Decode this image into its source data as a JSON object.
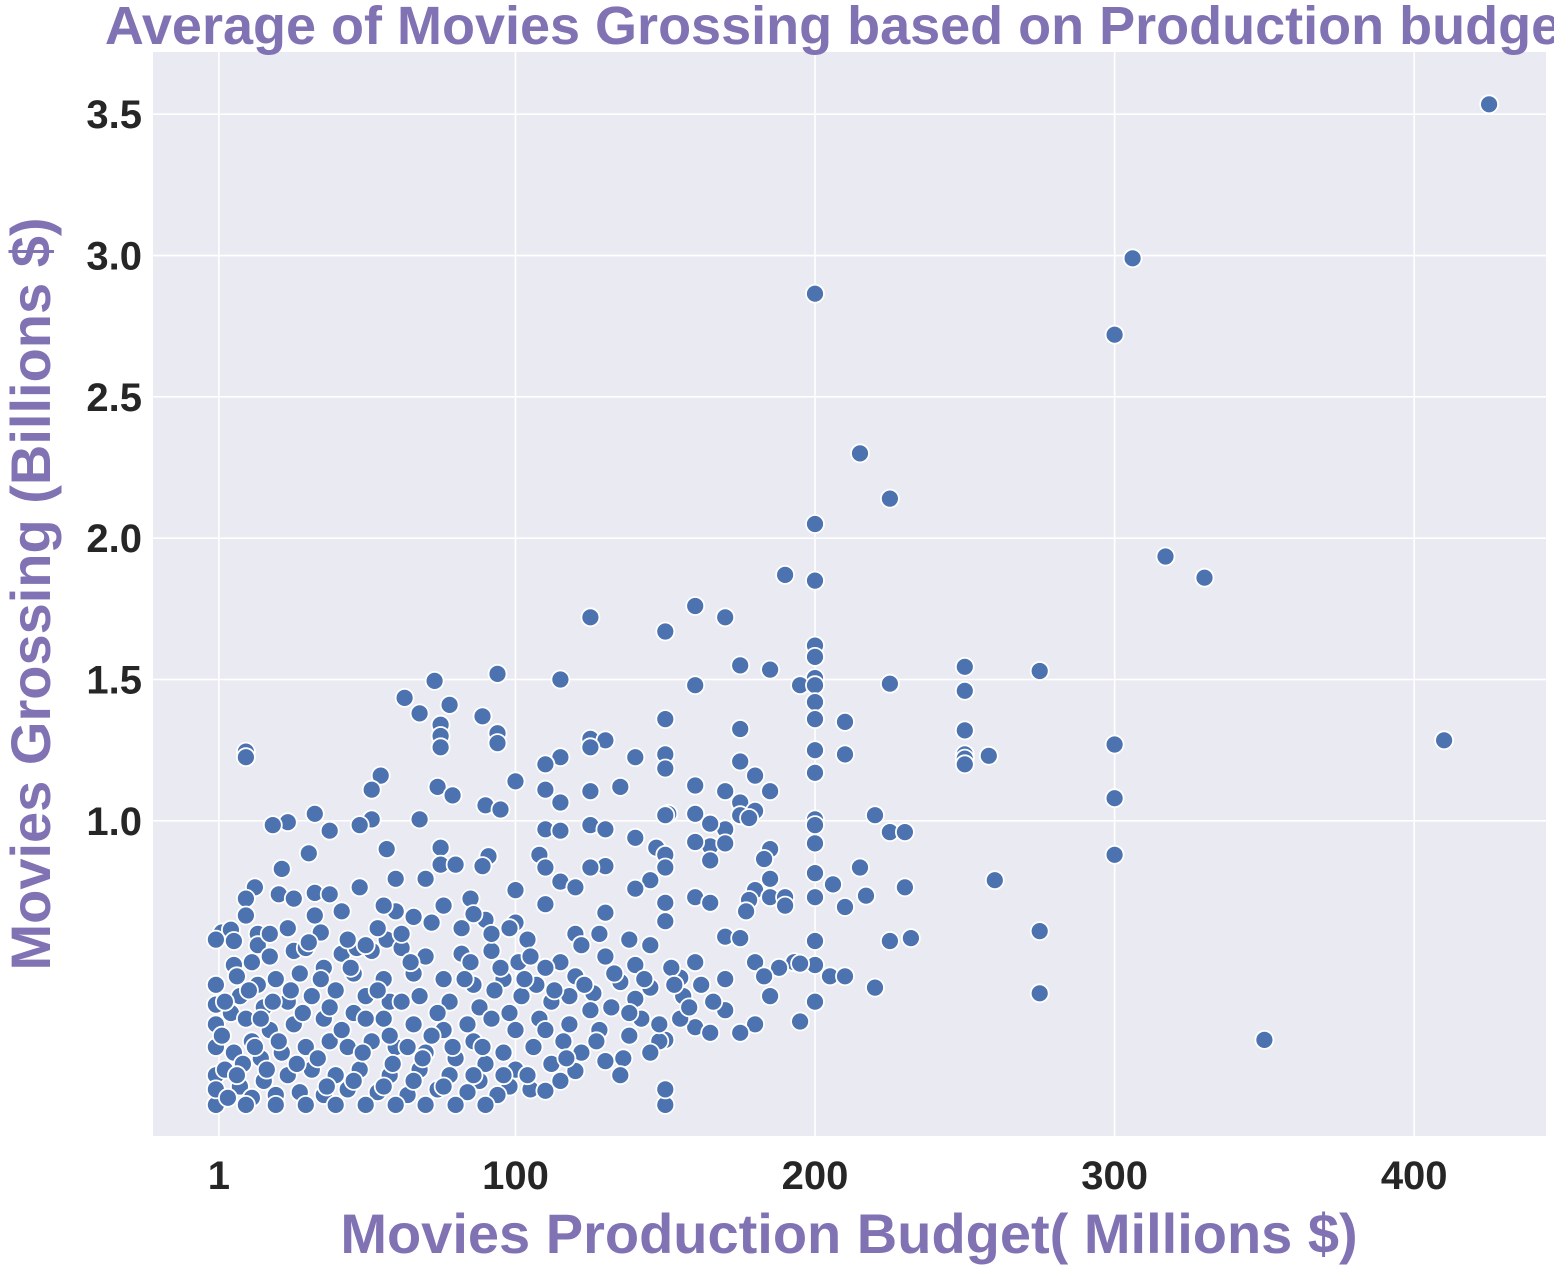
{
  "chart_data": {
    "type": "scatter",
    "title": "Average  of Movies Grossing based on Production budget",
    "xlabel": "Movies Production Budget( Millions $)",
    "ylabel": "Movies Grossing (Billions $)",
    "xlim": [
      -21,
      444
    ],
    "ylim": [
      -0.115,
      3.72
    ],
    "x_ticks": [
      1,
      100,
      200,
      300,
      400
    ],
    "y_ticks": [
      1.0,
      1.5,
      2.0,
      2.5,
      3.0,
      3.5
    ],
    "y_tick_labels": [
      "1.0",
      "1.5",
      "2.0",
      "2.5",
      "3.0",
      "3.5"
    ],
    "grid": true,
    "colors": {
      "background": "#eaeaf2",
      "grid": "#ffffff",
      "marker": "#4c72b0",
      "marker_edge": "#ffffff",
      "label": "#8172b3",
      "tick": "#262626"
    },
    "points": [
      [
        425,
        3.535
      ],
      [
        306,
        2.99
      ],
      [
        200,
        2.865
      ],
      [
        300,
        2.72
      ],
      [
        215,
        2.3
      ],
      [
        225,
        2.14
      ],
      [
        200,
        2.05
      ],
      [
        317,
        1.935
      ],
      [
        330,
        1.86
      ],
      [
        190,
        1.87
      ],
      [
        200,
        1.85
      ],
      [
        125,
        1.72
      ],
      [
        160,
        1.76
      ],
      [
        170,
        1.72
      ],
      [
        150,
        1.67
      ],
      [
        200,
        1.62
      ],
      [
        200,
        1.58
      ],
      [
        175,
        1.55
      ],
      [
        185,
        1.535
      ],
      [
        250,
        1.545
      ],
      [
        275,
        1.53
      ],
      [
        94,
        1.52
      ],
      [
        115,
        1.5
      ],
      [
        200,
        1.505
      ],
      [
        73,
        1.495
      ],
      [
        160,
        1.48
      ],
      [
        195,
        1.48
      ],
      [
        200,
        1.48
      ],
      [
        225,
        1.485
      ],
      [
        250,
        1.46
      ],
      [
        63,
        1.435
      ],
      [
        200,
        1.42
      ],
      [
        78,
        1.41
      ],
      [
        68,
        1.38
      ],
      [
        89,
        1.37
      ],
      [
        150,
        1.36
      ],
      [
        200,
        1.36
      ],
      [
        210,
        1.35
      ],
      [
        75,
        1.34
      ],
      [
        175,
        1.325
      ],
      [
        250,
        1.32
      ],
      [
        94,
        1.31
      ],
      [
        75,
        1.3
      ],
      [
        125,
        1.29
      ],
      [
        130,
        1.285
      ],
      [
        410,
        1.285
      ],
      [
        94,
        1.275
      ],
      [
        300,
        1.27
      ],
      [
        125,
        1.26
      ],
      [
        75,
        1.26
      ],
      [
        200,
        1.25
      ],
      [
        10,
        1.245
      ],
      [
        150,
        1.235
      ],
      [
        210,
        1.235
      ],
      [
        250,
        1.235
      ],
      [
        258,
        1.23
      ],
      [
        10,
        1.225
      ],
      [
        115,
        1.225
      ],
      [
        140,
        1.225
      ],
      [
        250,
        1.22
      ],
      [
        175,
        1.21
      ],
      [
        110,
        1.2
      ],
      [
        250,
        1.2
      ],
      [
        150,
        1.185
      ],
      [
        200,
        1.17
      ],
      [
        180,
        1.16
      ],
      [
        55,
        1.16
      ],
      [
        100,
        1.14
      ],
      [
        74,
        1.12
      ],
      [
        135,
        1.12
      ],
      [
        160,
        1.125
      ],
      [
        110,
        1.11
      ],
      [
        125,
        1.105
      ],
      [
        170,
        1.105
      ],
      [
        185,
        1.105
      ],
      [
        52,
        1.11
      ],
      [
        79,
        1.09
      ],
      [
        300,
        1.08
      ],
      [
        175,
        1.065
      ],
      [
        115,
        1.065
      ],
      [
        90,
        1.055
      ],
      [
        95,
        1.04
      ],
      [
        180,
        1.035
      ],
      [
        175,
        1.02
      ],
      [
        151,
        1.025
      ],
      [
        150,
        1.02
      ],
      [
        160,
        1.025
      ],
      [
        220,
        1.02
      ],
      [
        33,
        1.025
      ],
      [
        52,
        1.005
      ],
      [
        68,
        1.005
      ],
      [
        200,
        1.005
      ],
      [
        178,
        1.01
      ],
      [
        24,
        0.995
      ],
      [
        19,
        0.985
      ],
      [
        48,
        0.985
      ],
      [
        110,
        0.97
      ],
      [
        125,
        0.985
      ],
      [
        170,
        0.97
      ],
      [
        200,
        0.985
      ],
      [
        38,
        0.965
      ],
      [
        115,
        0.965
      ],
      [
        165,
        0.99
      ],
      [
        225,
        0.96
      ],
      [
        230,
        0.96
      ],
      [
        140,
        0.94
      ],
      [
        200,
        0.92
      ],
      [
        147,
        0.905
      ],
      [
        130,
        0.97
      ],
      [
        75,
        0.905
      ],
      [
        57,
        0.9
      ],
      [
        165,
        0.91
      ],
      [
        170,
        0.92
      ],
      [
        185,
        0.9
      ],
      [
        160,
        0.925
      ],
      [
        31,
        0.885
      ],
      [
        91,
        0.875
      ],
      [
        108,
        0.88
      ],
      [
        150,
        0.88
      ],
      [
        300,
        0.88
      ],
      [
        183,
        0.865
      ],
      [
        165,
        0.86
      ],
      [
        130,
        0.84
      ],
      [
        215,
        0.835
      ],
      [
        75,
        0.845
      ],
      [
        80,
        0.845
      ],
      [
        89,
        0.84
      ],
      [
        110,
        0.835
      ],
      [
        125,
        0.835
      ],
      [
        150,
        0.835
      ],
      [
        22,
        0.83
      ],
      [
        200,
        0.815
      ],
      [
        260,
        0.79
      ],
      [
        60,
        0.795
      ],
      [
        70,
        0.795
      ],
      [
        185,
        0.795
      ],
      [
        145,
        0.79
      ],
      [
        115,
        0.785
      ],
      [
        13,
        0.765
      ],
      [
        48,
        0.765
      ],
      [
        120,
        0.765
      ],
      [
        230,
        0.765
      ],
      [
        140,
        0.76
      ],
      [
        206,
        0.775
      ],
      [
        180,
        0.755
      ],
      [
        33,
        0.745
      ],
      [
        38,
        0.74
      ],
      [
        21,
        0.74
      ],
      [
        100,
        0.755
      ],
      [
        185,
        0.73
      ],
      [
        10,
        0.725
      ],
      [
        26,
        0.725
      ],
      [
        85,
        0.725
      ],
      [
        160,
        0.73
      ],
      [
        190,
        0.73
      ],
      [
        217,
        0.735
      ],
      [
        200,
        0.73
      ],
      [
        110,
        0.705
      ],
      [
        150,
        0.71
      ],
      [
        165,
        0.71
      ],
      [
        178,
        0.72
      ],
      [
        190,
        0.7
      ],
      [
        210,
        0.695
      ],
      [
        33,
        0.665
      ],
      [
        10,
        0.665
      ],
      [
        130,
        0.675
      ],
      [
        177,
        0.68
      ],
      [
        60,
        0.68
      ],
      [
        90,
        0.65
      ],
      [
        150,
        0.645
      ],
      [
        100,
        0.64
      ],
      [
        2,
        0.605
      ],
      [
        5,
        0.615
      ],
      [
        120,
        0.6
      ],
      [
        35,
        0.605
      ],
      [
        275,
        0.61
      ],
      [
        232,
        0.585
      ],
      [
        225,
        0.575
      ],
      [
        200,
        0.575
      ],
      [
        170,
        0.59
      ],
      [
        175,
        0.585
      ],
      [
        0,
        0.58
      ],
      [
        6,
        0.575
      ],
      [
        14,
        0.6
      ],
      [
        57,
        0.58
      ],
      [
        14,
        0.56
      ],
      [
        6,
        0.49
      ],
      [
        180,
        0.5
      ],
      [
        193,
        0.5
      ],
      [
        200,
        0.49
      ],
      [
        188,
        0.48
      ],
      [
        160,
        0.5
      ],
      [
        115,
        0.5
      ],
      [
        140,
        0.49
      ],
      [
        195,
        0.495
      ],
      [
        205,
        0.45
      ],
      [
        210,
        0.45
      ],
      [
        183,
        0.45
      ],
      [
        155,
        0.445
      ],
      [
        220,
        0.41
      ],
      [
        275,
        0.39
      ],
      [
        200,
        0.36
      ],
      [
        185,
        0.38
      ],
      [
        170,
        0.33
      ],
      [
        180,
        0.28
      ],
      [
        195,
        0.29
      ],
      [
        175,
        0.25
      ],
      [
        160,
        0.27
      ],
      [
        350,
        0.225
      ],
      [
        150,
        0.225
      ],
      [
        130,
        0.15
      ],
      [
        120,
        0.115
      ],
      [
        105,
        0.05
      ],
      [
        110,
        0.045
      ],
      [
        150,
        -0.005
      ],
      [
        150,
        0.05
      ],
      [
        0,
        -0.005
      ],
      [
        0,
        0.1
      ],
      [
        0,
        0.2
      ],
      [
        0,
        0.28
      ],
      [
        0,
        0.35
      ],
      [
        0,
        0.42
      ],
      [
        0,
        0.05
      ],
      [
        7,
        0.45
      ],
      [
        12,
        0.5
      ],
      [
        18,
        0.52
      ],
      [
        26,
        0.54
      ],
      [
        30,
        0.55
      ],
      [
        42,
        0.53
      ],
      [
        47,
        0.55
      ],
      [
        52,
        0.54
      ],
      [
        62,
        0.55
      ],
      [
        70,
        0.52
      ],
      [
        82,
        0.53
      ],
      [
        92,
        0.54
      ],
      [
        101,
        0.5
      ],
      [
        96,
        0.44
      ],
      [
        110,
        0.48
      ],
      [
        120,
        0.45
      ],
      [
        135,
        0.43
      ],
      [
        145,
        0.41
      ],
      [
        156,
        0.38
      ],
      [
        166,
        0.36
      ],
      [
        126,
        0.39
      ],
      [
        132,
        0.34
      ],
      [
        142,
        0.3
      ],
      [
        112,
        0.36
      ],
      [
        102,
        0.38
      ],
      [
        86,
        0.42
      ],
      [
        76,
        0.44
      ],
      [
        66,
        0.46
      ],
      [
        56,
        0.44
      ],
      [
        46,
        0.46
      ],
      [
        36,
        0.48
      ],
      [
        28,
        0.46
      ],
      [
        20,
        0.44
      ],
      [
        14,
        0.42
      ],
      [
        8,
        0.38
      ],
      [
        5,
        0.32
      ],
      [
        10,
        0.3
      ],
      [
        16,
        0.34
      ],
      [
        24,
        0.36
      ],
      [
        32,
        0.38
      ],
      [
        40,
        0.4
      ],
      [
        50,
        0.38
      ],
      [
        58,
        0.36
      ],
      [
        68,
        0.38
      ],
      [
        78,
        0.36
      ],
      [
        88,
        0.34
      ],
      [
        98,
        0.32
      ],
      [
        108,
        0.3
      ],
      [
        118,
        0.28
      ],
      [
        128,
        0.26
      ],
      [
        138,
        0.24
      ],
      [
        148,
        0.22
      ],
      [
        116,
        0.22
      ],
      [
        106,
        0.2
      ],
      [
        96,
        0.18
      ],
      [
        86,
        0.22
      ],
      [
        76,
        0.26
      ],
      [
        66,
        0.28
      ],
      [
        56,
        0.3
      ],
      [
        46,
        0.32
      ],
      [
        36,
        0.3
      ],
      [
        26,
        0.28
      ],
      [
        18,
        0.26
      ],
      [
        12,
        0.22
      ],
      [
        6,
        0.18
      ],
      [
        3,
        0.12
      ],
      [
        9,
        0.14
      ],
      [
        15,
        0.16
      ],
      [
        22,
        0.18
      ],
      [
        30,
        0.2
      ],
      [
        38,
        0.22
      ],
      [
        44,
        0.2
      ],
      [
        52,
        0.22
      ],
      [
        60,
        0.2
      ],
      [
        70,
        0.18
      ],
      [
        80,
        0.16
      ],
      [
        90,
        0.14
      ],
      [
        100,
        0.12
      ],
      [
        112,
        0.14
      ],
      [
        122,
        0.18
      ],
      [
        136,
        0.16
      ],
      [
        98,
        0.06
      ],
      [
        88,
        0.08
      ],
      [
        78,
        0.1
      ],
      [
        68,
        0.12
      ],
      [
        58,
        0.1
      ],
      [
        48,
        0.12
      ],
      [
        40,
        0.1
      ],
      [
        32,
        0.12
      ],
      [
        24,
        0.1
      ],
      [
        16,
        0.08
      ],
      [
        8,
        0.06
      ],
      [
        4,
        0.02
      ],
      [
        12,
        0.02
      ],
      [
        20,
        0.03
      ],
      [
        28,
        0.04
      ],
      [
        36,
        0.03
      ],
      [
        44,
        0.05
      ],
      [
        54,
        0.04
      ],
      [
        64,
        0.03
      ],
      [
        74,
        0.05
      ],
      [
        84,
        0.04
      ],
      [
        94,
        0.03
      ],
      [
        80,
        -0.005
      ],
      [
        70,
        -0.005
      ],
      [
        60,
        -0.005
      ],
      [
        50,
        -0.005
      ],
      [
        40,
        -0.005
      ],
      [
        30,
        -0.005
      ],
      [
        20,
        -0.005
      ],
      [
        10,
        -0.005
      ],
      [
        90,
        -0.005
      ],
      [
        62,
        0.6
      ],
      [
        54,
        0.62
      ],
      [
        44,
        0.58
      ],
      [
        72,
        0.64
      ],
      [
        82,
        0.62
      ],
      [
        66,
        0.66
      ],
      [
        92,
        0.6
      ],
      [
        98,
        0.62
      ],
      [
        104,
        0.58
      ],
      [
        122,
        0.56
      ],
      [
        128,
        0.6
      ],
      [
        138,
        0.58
      ],
      [
        145,
        0.56
      ],
      [
        86,
        0.67
      ],
      [
        76,
        0.7
      ],
      [
        56,
        0.7
      ],
      [
        42,
        0.68
      ],
      [
        24,
        0.62
      ],
      [
        18,
        0.6
      ],
      [
        31,
        0.57
      ],
      [
        50,
        0.56
      ],
      [
        105,
        0.52
      ],
      [
        130,
        0.52
      ],
      [
        152,
        0.48
      ],
      [
        170,
        0.44
      ],
      [
        162,
        0.42
      ],
      [
        140,
        0.37
      ],
      [
        125,
        0.33
      ],
      [
        155,
        0.3
      ],
      [
        165,
        0.25
      ],
      [
        145,
        0.18
      ],
      [
        135,
        0.1
      ],
      [
        115,
        0.08
      ],
      [
        104,
        0.1
      ],
      [
        110,
        0.26
      ],
      [
        118,
        0.38
      ],
      [
        95,
        0.48
      ],
      [
        85,
        0.5
      ],
      [
        65,
        0.5
      ],
      [
        45,
        0.48
      ],
      [
        35,
        0.44
      ],
      [
        25,
        0.4
      ],
      [
        15,
        0.3
      ],
      [
        2,
        0.24
      ],
      [
        3,
        0.36
      ],
      [
        11,
        0.4
      ],
      [
        21,
        0.22
      ],
      [
        27,
        0.14
      ],
      [
        34,
        0.16
      ],
      [
        42,
        0.26
      ],
      [
        50,
        0.3
      ],
      [
        58,
        0.24
      ],
      [
        64,
        0.2
      ],
      [
        72,
        0.24
      ],
      [
        84,
        0.28
      ],
      [
        92,
        0.3
      ],
      [
        100,
        0.26
      ],
      [
        107,
        0.42
      ],
      [
        74,
        0.32
      ],
      [
        62,
        0.36
      ],
      [
        54,
        0.4
      ],
      [
        38,
        0.34
      ],
      [
        46,
        0.08
      ],
      [
        56,
        0.06
      ],
      [
        66,
        0.08
      ],
      [
        76,
        0.06
      ],
      [
        86,
        0.1
      ],
      [
        96,
        0.1
      ],
      [
        17,
        0.12
      ],
      [
        7,
        0.1
      ],
      [
        13,
        0.2
      ],
      [
        19,
        0.36
      ],
      [
        29,
        0.32
      ],
      [
        37,
        0.06
      ],
      [
        83,
        0.44
      ],
      [
        93,
        0.4
      ],
      [
        103,
        0.44
      ],
      [
        113,
        0.4
      ],
      [
        123,
        0.42
      ],
      [
        133,
        0.46
      ],
      [
        143,
        0.44
      ],
      [
        153,
        0.42
      ],
      [
        158,
        0.34
      ],
      [
        148,
        0.28
      ],
      [
        138,
        0.32
      ],
      [
        127,
        0.22
      ],
      [
        117,
        0.16
      ],
      [
        89,
        0.2
      ],
      [
        79,
        0.2
      ],
      [
        69,
        0.16
      ],
      [
        59,
        0.14
      ],
      [
        49,
        0.18
      ]
    ]
  }
}
